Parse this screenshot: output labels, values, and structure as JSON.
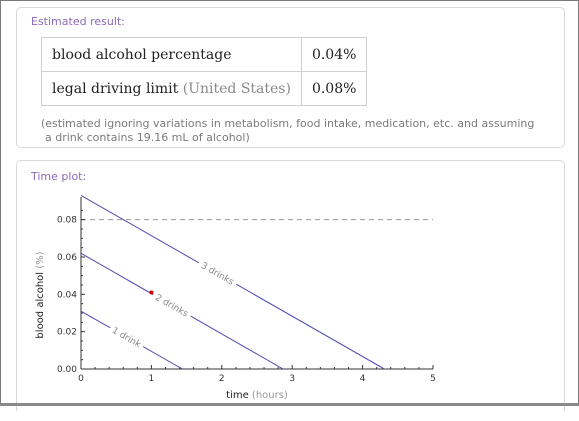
{
  "estimated": {
    "title": "Estimated result:",
    "rows": [
      {
        "label": "blood alcohol percentage",
        "sub": "",
        "value": "0.04%"
      },
      {
        "label": "legal driving limit",
        "sub": "(United States)",
        "value": "0.08%"
      }
    ],
    "note_line1": "(estimated ignoring variations in metabolism, food intake, medication, etc. and assuming",
    "note_line2": "a drink contains 19.16 mL of alcohol)"
  },
  "timeplot": {
    "title": "Time plot:"
  },
  "chart_data": {
    "type": "line",
    "xlabel": "time",
    "xlabel_unit": "(hours)",
    "ylabel": "blood alcohol",
    "ylabel_unit": "(%)",
    "xlim": [
      0,
      5
    ],
    "ylim": [
      0,
      0.09
    ],
    "x_ticks": [
      "0",
      "1",
      "2",
      "3",
      "4",
      "5"
    ],
    "y_ticks": [
      "0.00",
      "0.02",
      "0.04",
      "0.06",
      "0.08"
    ],
    "y_tick_values": [
      0,
      0.02,
      0.04,
      0.06,
      0.08
    ],
    "x_tick_values": [
      0,
      1,
      2,
      3,
      4,
      5
    ],
    "series": [
      {
        "name": "1 drink",
        "points": [
          [
            0,
            0.031
          ],
          [
            1.44,
            0.0
          ]
        ]
      },
      {
        "name": "2 drinks",
        "points": [
          [
            0,
            0.062
          ],
          [
            2.87,
            0.0
          ]
        ]
      },
      {
        "name": "3 drinks",
        "points": [
          [
            0,
            0.093
          ],
          [
            4.31,
            0.0
          ]
        ]
      }
    ],
    "legal_limit": 0.08,
    "marker": {
      "x": 1.0,
      "y": 0.041
    },
    "colors": {
      "line": "#4b4bb0",
      "limit": "#9a9a9a",
      "marker": "#cc0000",
      "axis": "#333333"
    }
  }
}
